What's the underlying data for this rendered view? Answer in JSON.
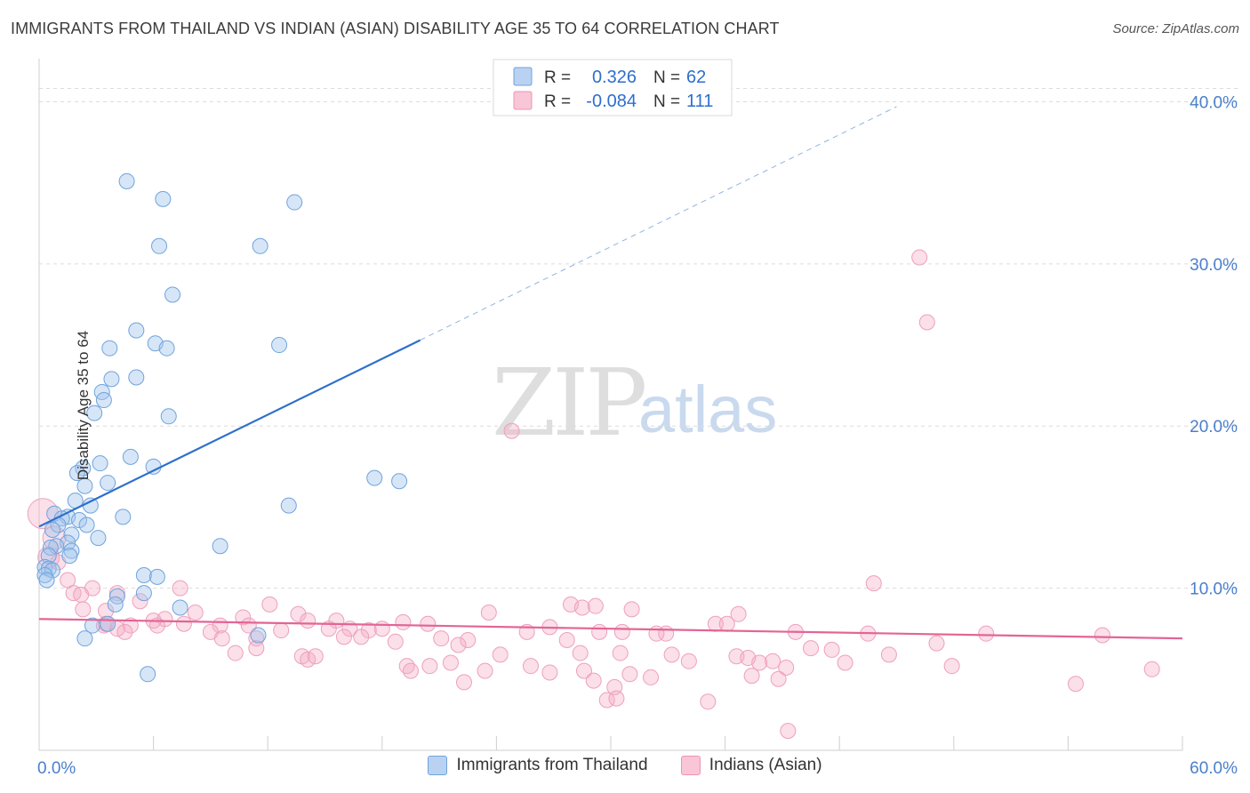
{
  "title": "IMMIGRANTS FROM THAILAND VS INDIAN (ASIAN) DISABILITY AGE 35 TO 64 CORRELATION CHART",
  "source": "Source: ZipAtlas.com",
  "watermark": {
    "zip": "ZIP",
    "atlas": "atlas"
  },
  "colors": {
    "blue": "#6fa3dd",
    "blue_line": "#2d6fcc",
    "pink": "#ef93b2",
    "pink_line": "#e26594",
    "tick_label": "#4a7fcb"
  },
  "stats": [
    {
      "r_label": "R =",
      "r_value": "0.326",
      "n_label": "N =",
      "n_value": "62"
    },
    {
      "r_label": "R =",
      "r_value": "-0.084",
      "n_label": "N =",
      "n_value": "111"
    }
  ],
  "chart_data": {
    "type": "scatter",
    "title": "IMMIGRANTS FROM THAILAND VS INDIAN (ASIAN) DISABILITY AGE 35 TO 64 CORRELATION CHART",
    "ylabel": "Disability Age 35 to 64",
    "xlabel": "",
    "xlim": [
      0,
      60
    ],
    "ylim": [
      0,
      42
    ],
    "x_tick_labels": [
      "0.0%",
      "60.0%"
    ],
    "y_ticks": [
      10,
      20,
      30,
      40
    ],
    "y_tick_labels": [
      "10.0%",
      "20.0%",
      "30.0%",
      "40.0%"
    ],
    "legend": [
      "Immigrants from Thailand",
      "Indians (Asian)"
    ],
    "series": [
      {
        "name": "Immigrants from Thailand",
        "color": "#6fa3dd",
        "trend": {
          "x0": 0,
          "y0": 13.8,
          "x1": 20,
          "y1": 25.3,
          "dashed_to_x": 45,
          "dashed_to_y": 39.7
        },
        "points": [
          [
            4.6,
            35.1
          ],
          [
            6.5,
            34.0
          ],
          [
            13.4,
            33.8
          ],
          [
            6.3,
            31.1
          ],
          [
            11.6,
            31.1
          ],
          [
            7.0,
            28.1
          ],
          [
            5.1,
            25.9
          ],
          [
            6.1,
            25.1
          ],
          [
            12.6,
            25.0
          ],
          [
            3.7,
            24.8
          ],
          [
            6.7,
            24.8
          ],
          [
            3.8,
            22.9
          ],
          [
            5.1,
            23.0
          ],
          [
            3.3,
            22.1
          ],
          [
            3.4,
            21.6
          ],
          [
            2.9,
            20.8
          ],
          [
            6.8,
            20.6
          ],
          [
            4.8,
            18.1
          ],
          [
            3.2,
            17.7
          ],
          [
            6.0,
            17.5
          ],
          [
            2.3,
            17.4
          ],
          [
            2.0,
            17.1
          ],
          [
            17.6,
            16.8
          ],
          [
            18.9,
            16.6
          ],
          [
            3.6,
            16.5
          ],
          [
            2.4,
            16.3
          ],
          [
            1.9,
            15.4
          ],
          [
            2.7,
            15.1
          ],
          [
            13.1,
            15.1
          ],
          [
            0.8,
            14.6
          ],
          [
            1.5,
            14.4
          ],
          [
            4.4,
            14.4
          ],
          [
            1.2,
            14.3
          ],
          [
            2.1,
            14.2
          ],
          [
            1.0,
            13.9
          ],
          [
            2.5,
            13.9
          ],
          [
            0.7,
            13.6
          ],
          [
            1.7,
            13.3
          ],
          [
            3.1,
            13.1
          ],
          [
            1.5,
            12.8
          ],
          [
            0.9,
            12.6
          ],
          [
            0.6,
            12.5
          ],
          [
            1.7,
            12.3
          ],
          [
            0.5,
            12.0
          ],
          [
            1.6,
            12.0
          ],
          [
            9.5,
            12.6
          ],
          [
            0.3,
            11.3
          ],
          [
            0.5,
            11.2
          ],
          [
            0.7,
            11.1
          ],
          [
            0.3,
            10.8
          ],
          [
            5.5,
            10.8
          ],
          [
            6.2,
            10.7
          ],
          [
            0.4,
            10.5
          ],
          [
            5.5,
            9.7
          ],
          [
            4.1,
            9.5
          ],
          [
            4.0,
            9.0
          ],
          [
            7.4,
            8.8
          ],
          [
            3.6,
            7.8
          ],
          [
            2.8,
            7.7
          ],
          [
            11.5,
            7.1
          ],
          [
            2.4,
            6.9
          ],
          [
            5.7,
            4.7
          ]
        ]
      },
      {
        "name": "Indians (Asian)",
        "color": "#ef93b2",
        "trend": {
          "x0": 0,
          "y0": 8.1,
          "x1": 60,
          "y1": 6.9
        },
        "points": [
          [
            46.2,
            30.4
          ],
          [
            46.6,
            26.4
          ],
          [
            24.8,
            19.7
          ],
          [
            0.2,
            14.6
          ],
          [
            0.8,
            13.1
          ],
          [
            0.5,
            11.9
          ],
          [
            1.0,
            11.6
          ],
          [
            1.5,
            10.5
          ],
          [
            43.8,
            10.3
          ],
          [
            2.8,
            10.0
          ],
          [
            7.4,
            10.0
          ],
          [
            1.8,
            9.7
          ],
          [
            2.2,
            9.6
          ],
          [
            5.3,
            9.2
          ],
          [
            12.1,
            9.0
          ],
          [
            27.9,
            9.0
          ],
          [
            28.5,
            8.8
          ],
          [
            29.2,
            8.9
          ],
          [
            31.1,
            8.7
          ],
          [
            23.6,
            8.5
          ],
          [
            36.7,
            8.4
          ],
          [
            13.6,
            8.4
          ],
          [
            3.5,
            8.6
          ],
          [
            8.2,
            8.5
          ],
          [
            10.7,
            8.2
          ],
          [
            6.6,
            8.1
          ],
          [
            14.1,
            8.0
          ],
          [
            15.6,
            8.0
          ],
          [
            19.1,
            7.9
          ],
          [
            20.4,
            7.8
          ],
          [
            4.8,
            7.7
          ],
          [
            3.4,
            7.7
          ],
          [
            6.2,
            7.7
          ],
          [
            9.5,
            7.7
          ],
          [
            35.5,
            7.8
          ],
          [
            36.1,
            7.8
          ],
          [
            26.8,
            7.6
          ],
          [
            16.3,
            7.5
          ],
          [
            17.3,
            7.4
          ],
          [
            18.0,
            7.5
          ],
          [
            12.7,
            7.4
          ],
          [
            25.6,
            7.3
          ],
          [
            29.4,
            7.3
          ],
          [
            30.6,
            7.3
          ],
          [
            32.9,
            7.2
          ],
          [
            32.4,
            7.2
          ],
          [
            39.7,
            7.3
          ],
          [
            43.5,
            7.2
          ],
          [
            49.7,
            7.2
          ],
          [
            55.8,
            7.1
          ],
          [
            9.0,
            7.3
          ],
          [
            16.9,
            7.0
          ],
          [
            4.1,
            7.5
          ],
          [
            3.5,
            7.8
          ],
          [
            22.5,
            6.8
          ],
          [
            27.7,
            6.8
          ],
          [
            21.1,
            6.9
          ],
          [
            47.1,
            6.6
          ],
          [
            4.5,
            7.3
          ],
          [
            9.6,
            6.9
          ],
          [
            11.4,
            6.9
          ],
          [
            16.0,
            7.0
          ],
          [
            22.0,
            6.5
          ],
          [
            18.7,
            6.7
          ],
          [
            40.5,
            6.3
          ],
          [
            41.6,
            6.2
          ],
          [
            10.3,
            6.0
          ],
          [
            11.4,
            6.3
          ],
          [
            13.8,
            5.8
          ],
          [
            14.1,
            5.6
          ],
          [
            14.5,
            5.8
          ],
          [
            24.2,
            5.9
          ],
          [
            28.4,
            6.0
          ],
          [
            30.5,
            6.0
          ],
          [
            33.2,
            5.9
          ],
          [
            36.6,
            5.8
          ],
          [
            37.2,
            5.7
          ],
          [
            37.8,
            5.4
          ],
          [
            42.3,
            5.4
          ],
          [
            44.6,
            5.9
          ],
          [
            19.3,
            5.2
          ],
          [
            20.5,
            5.2
          ],
          [
            21.6,
            5.4
          ],
          [
            25.8,
            5.2
          ],
          [
            34.1,
            5.5
          ],
          [
            38.5,
            5.5
          ],
          [
            39.2,
            5.1
          ],
          [
            47.9,
            5.2
          ],
          [
            58.4,
            5.0
          ],
          [
            19.5,
            4.9
          ],
          [
            23.4,
            4.9
          ],
          [
            26.8,
            4.8
          ],
          [
            28.6,
            4.9
          ],
          [
            31.0,
            4.7
          ],
          [
            32.1,
            4.5
          ],
          [
            37.4,
            4.6
          ],
          [
            38.8,
            4.4
          ],
          [
            54.4,
            4.1
          ],
          [
            22.3,
            4.2
          ],
          [
            29.1,
            4.3
          ],
          [
            30.2,
            3.9
          ],
          [
            29.8,
            3.1
          ],
          [
            30.3,
            3.2
          ],
          [
            35.1,
            3.0
          ],
          [
            39.3,
            1.2
          ],
          [
            2.3,
            8.7
          ],
          [
            4.1,
            9.7
          ],
          [
            6.0,
            8.0
          ],
          [
            11.0,
            7.7
          ],
          [
            15.2,
            7.5
          ],
          [
            7.6,
            7.8
          ]
        ]
      }
    ]
  }
}
